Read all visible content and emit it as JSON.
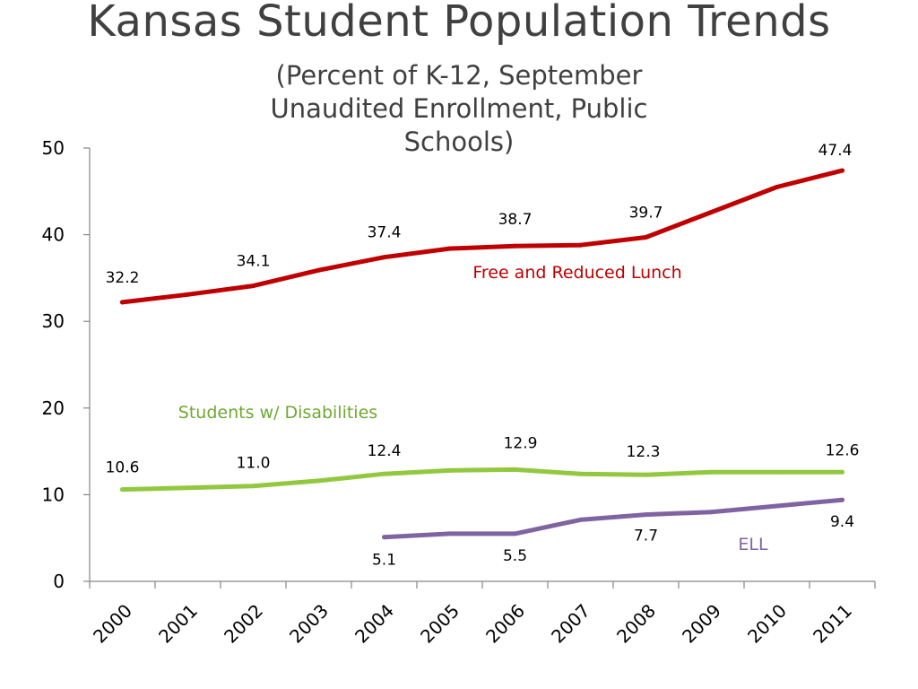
{
  "chart_data": {
    "type": "line",
    "title": "Kansas Student Population Trends",
    "subtitle": "(Percent of K-12, September Unaudited Enrollment, Public Schools)",
    "xlabel": "",
    "ylabel": "",
    "x": [
      "2000",
      "2001",
      "2002",
      "2003",
      "2004",
      "2005",
      "2006",
      "2007",
      "2008",
      "2009",
      "2010",
      "2011"
    ],
    "ylim": [
      0,
      50
    ],
    "yticks": [
      "0",
      "10",
      "20",
      "30",
      "40",
      "50"
    ],
    "grid": false,
    "series": [
      {
        "name": "Free and Reduced Lunch",
        "color": "#c00000",
        "values": [
          32.2,
          33.1,
          34.1,
          35.9,
          37.4,
          38.4,
          38.7,
          38.8,
          39.7,
          42.6,
          45.5,
          47.4
        ],
        "labels": [
          {
            "i": 0,
            "text": "32.2"
          },
          {
            "i": 2,
            "text": "34.1"
          },
          {
            "i": 4,
            "text": "37.4"
          },
          {
            "i": 6,
            "text": "38.7"
          },
          {
            "i": 8,
            "text": "39.7"
          },
          {
            "i": 11,
            "text": "47.4"
          }
        ]
      },
      {
        "name": "Students w/ Disabilities",
        "color": "#92c83e",
        "values": [
          10.6,
          10.8,
          11.0,
          11.6,
          12.4,
          12.8,
          12.9,
          12.4,
          12.3,
          12.6,
          12.6,
          12.6
        ],
        "labels": [
          {
            "i": 0,
            "text": "10.6"
          },
          {
            "i": 2,
            "text": "11.0"
          },
          {
            "i": 4,
            "text": "12.4"
          },
          {
            "i": 6,
            "text": "12.9"
          },
          {
            "i": 8,
            "text": "12.3"
          },
          {
            "i": 11,
            "text": "12.6"
          }
        ]
      },
      {
        "name": "ELL",
        "color": "#8064a2",
        "values": [
          null,
          null,
          null,
          null,
          5.1,
          5.5,
          5.5,
          7.1,
          7.7,
          8.0,
          8.7,
          9.4
        ],
        "labels": [
          {
            "i": 4,
            "text": "5.1"
          },
          {
            "i": 6,
            "text": "5.5"
          },
          {
            "i": 8,
            "text": "7.7"
          },
          {
            "i": 11,
            "text": "9.4"
          }
        ]
      }
    ]
  }
}
